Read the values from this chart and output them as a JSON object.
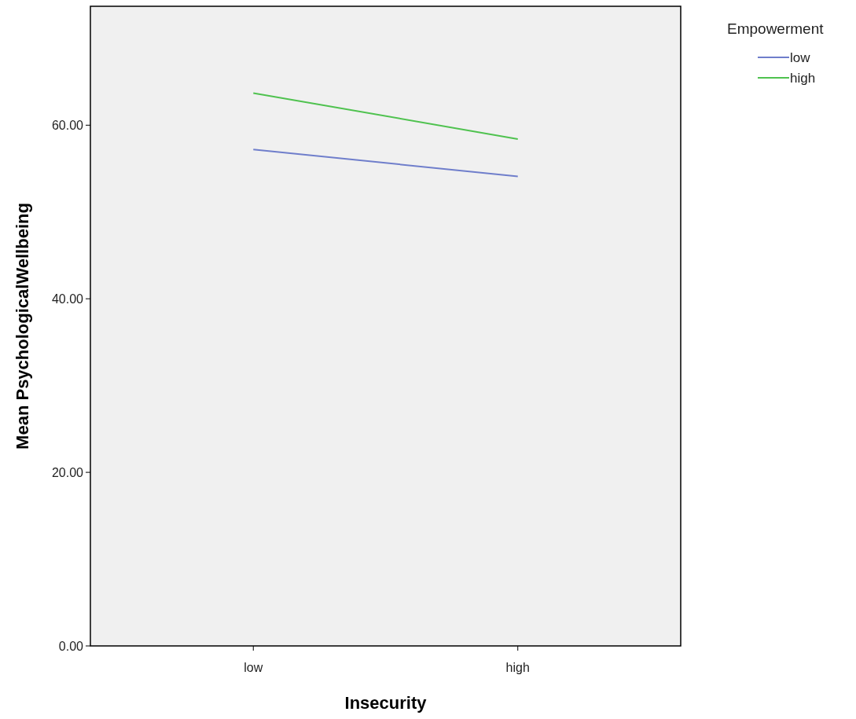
{
  "chart_data": {
    "type": "line",
    "xlabel": "Insecurity",
    "ylabel": "Mean PsychologicalWellbeing",
    "legend_title": "Empowerment",
    "legend": "top right",
    "categories": [
      "low",
      "high"
    ],
    "series": [
      {
        "name": "low",
        "color": "#6f7ecb",
        "values": [
          57.2,
          54.1
        ]
      },
      {
        "name": "high",
        "color": "#4fc24f",
        "values": [
          63.7,
          58.4
        ]
      }
    ],
    "ylim": [
      0,
      73.7
    ],
    "yticks": [
      {
        "value": 0,
        "label": "0.00"
      },
      {
        "value": 20,
        "label": "20.00"
      },
      {
        "value": 40,
        "label": "40.00"
      },
      {
        "value": 60,
        "label": "60.00"
      }
    ],
    "grid": false,
    "marker": "none",
    "line_style": "solid"
  }
}
